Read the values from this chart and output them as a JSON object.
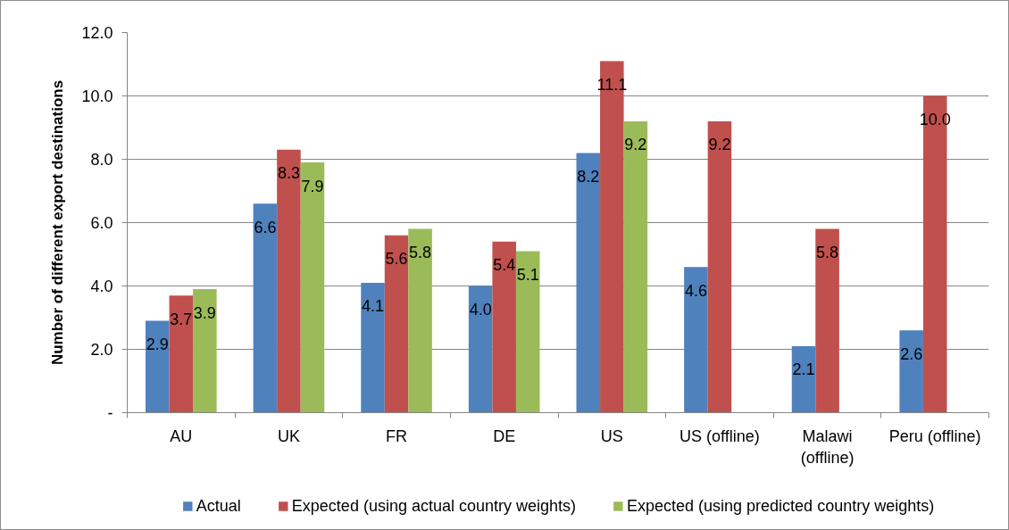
{
  "chart_data": {
    "type": "bar",
    "ylabel": "Number of different export destinations",
    "categories": [
      "AU",
      "UK",
      "FR",
      "DE",
      "US",
      "US (offline)",
      "Malawi (offline)",
      "Peru (offline)"
    ],
    "series": [
      {
        "name": "Actual",
        "color": "#4f81bd",
        "values": [
          2.9,
          6.6,
          4.1,
          4.0,
          8.2,
          4.6,
          2.1,
          2.6
        ],
        "value_labels": [
          "2.9",
          "6.6",
          "4.1",
          "4.0",
          "8.2",
          "4.6",
          "2.1",
          "2.6"
        ]
      },
      {
        "name": "Expected (using actual country weights)",
        "color": "#c0504d",
        "values": [
          3.7,
          8.3,
          5.6,
          5.4,
          11.1,
          9.2,
          5.8,
          10.0
        ],
        "value_labels": [
          "3.7",
          "8.3",
          "5.6",
          "5.4",
          "11.1",
          "9.2",
          "5.8",
          "10.0"
        ]
      },
      {
        "name": "Expected (using predicted country weights)",
        "color": "#9bbb59",
        "values": [
          3.9,
          7.9,
          5.8,
          5.1,
          9.2,
          null,
          null,
          null
        ],
        "value_labels": [
          "3.9",
          "7.9",
          "5.8",
          "5.1",
          "9.2",
          null,
          null,
          null
        ]
      }
    ],
    "ylim": [
      0,
      12
    ],
    "yticks": [
      {
        "value": 0,
        "label": "-"
      },
      {
        "value": 2,
        "label": "2.0"
      },
      {
        "value": 4,
        "label": "4.0"
      },
      {
        "value": 6,
        "label": "6.0"
      },
      {
        "value": 8,
        "label": "8.0"
      },
      {
        "value": 10,
        "label": "10.0"
      },
      {
        "value": 12,
        "label": "12.0"
      }
    ],
    "grid": "y",
    "legend": "bottom"
  }
}
